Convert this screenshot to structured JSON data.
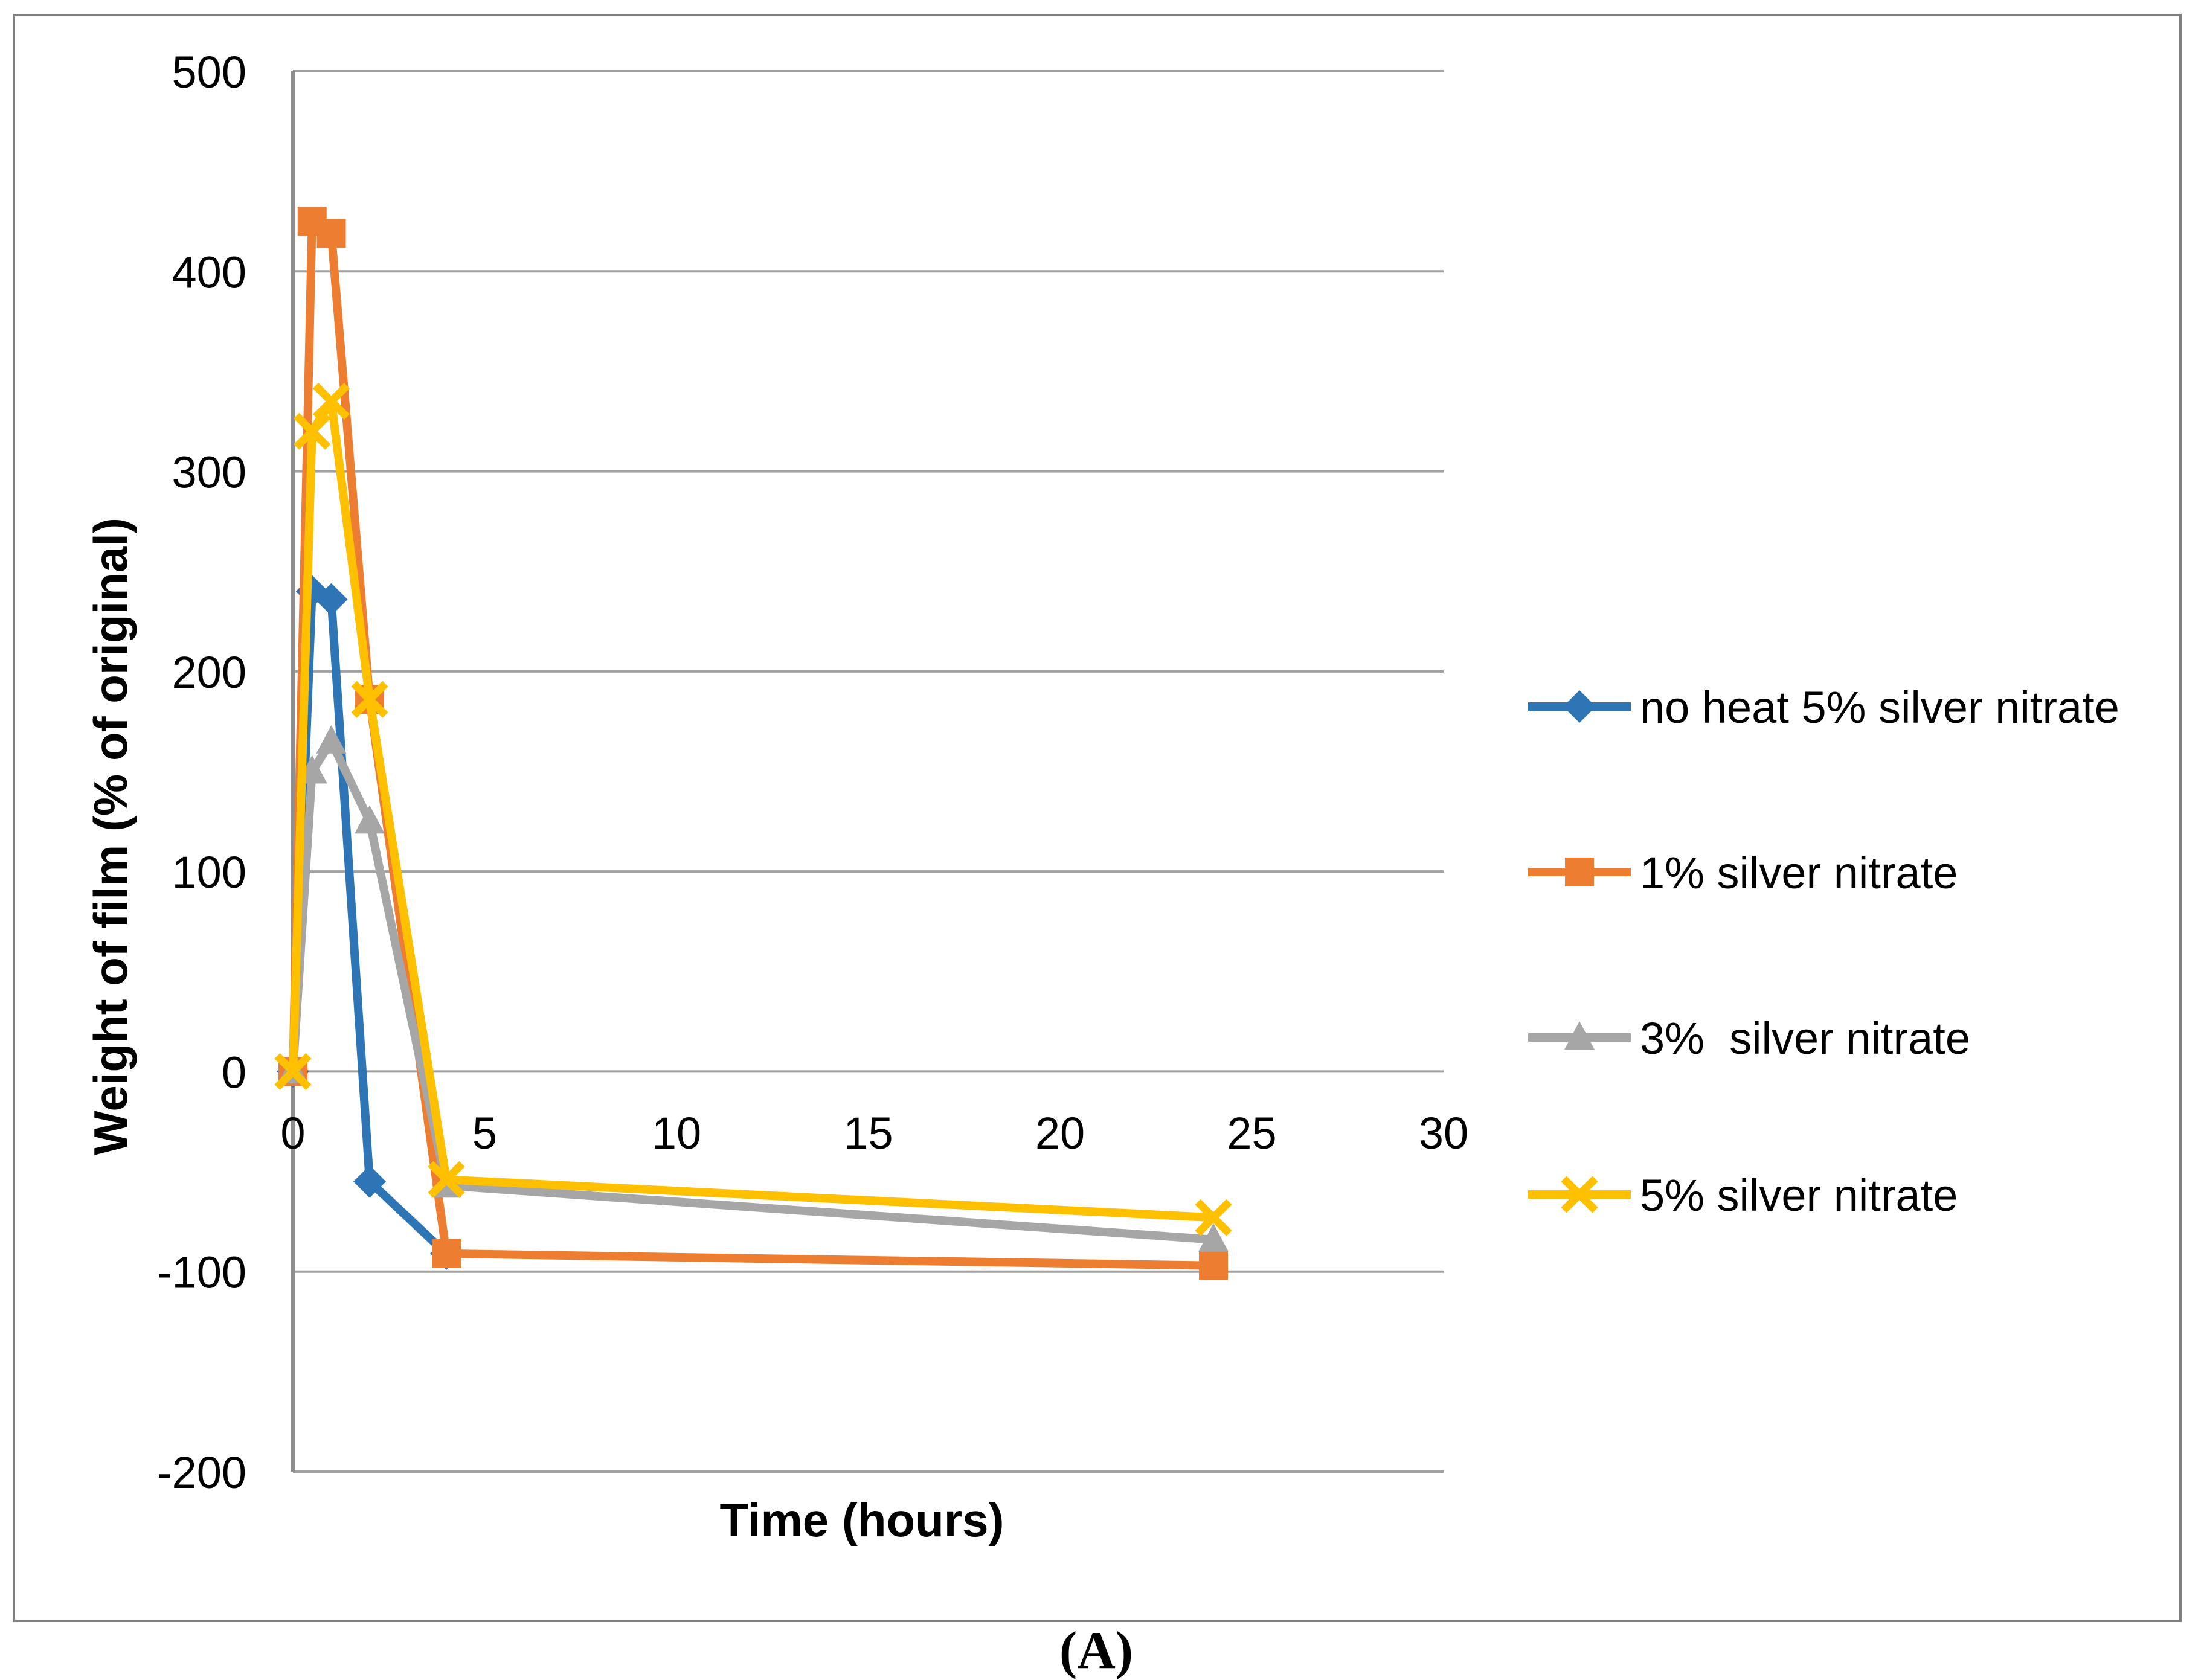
{
  "figure": {
    "panel_label": "(A)",
    "background": "#FFFFFF",
    "border_color": "#7F7F7F",
    "axes": {
      "x_title": "Time (hours)",
      "y_title": "Weight of film (% of original)",
      "x_ticks": [
        "0",
        "5",
        "10",
        "15",
        "20",
        "25",
        "30"
      ],
      "y_ticks": [
        "500",
        "400",
        "300",
        "200",
        "100",
        "0",
        "-100",
        "-200"
      ],
      "grid_color": "#A0A0A0",
      "axis_line_color": "#8E8E8E",
      "text_color": "#000000"
    },
    "legend_position": "right"
  },
  "chart_data": {
    "type": "line",
    "title": "",
    "xlabel": "Time (hours)",
    "ylabel": "Weight of film (% of original)",
    "xlim": [
      0,
      30
    ],
    "ylim": [
      -200,
      500
    ],
    "x_tick_step": 5,
    "y_tick_step": 100,
    "grid": "horizontal",
    "legend_position": "right",
    "series": [
      {
        "name": "no heat 5% silver nitrate",
        "color": "#2E75B6",
        "marker": "diamond",
        "x": [
          0,
          0.5,
          1,
          2,
          4
        ],
        "y": [
          0,
          240,
          236,
          -55,
          -91
        ]
      },
      {
        "name": "1% silver nitrate",
        "color": "#ED7D31",
        "marker": "square",
        "x": [
          0,
          0.5,
          1,
          2,
          4,
          24
        ],
        "y": [
          0,
          425,
          419,
          186,
          -91,
          -97
        ]
      },
      {
        "name": "3%  silver nitrate",
        "color": "#A6A6A6",
        "marker": "triangle",
        "x": [
          0,
          0.5,
          1,
          2,
          4,
          24
        ],
        "y": [
          0,
          150,
          165,
          125,
          -57,
          -84
        ]
      },
      {
        "name": "5% silver nitrate",
        "color": "#FFC000",
        "marker": "x",
        "x": [
          0,
          0.5,
          1,
          2,
          4,
          24
        ],
        "y": [
          0,
          320,
          335,
          186,
          -54,
          -73
        ]
      }
    ]
  }
}
